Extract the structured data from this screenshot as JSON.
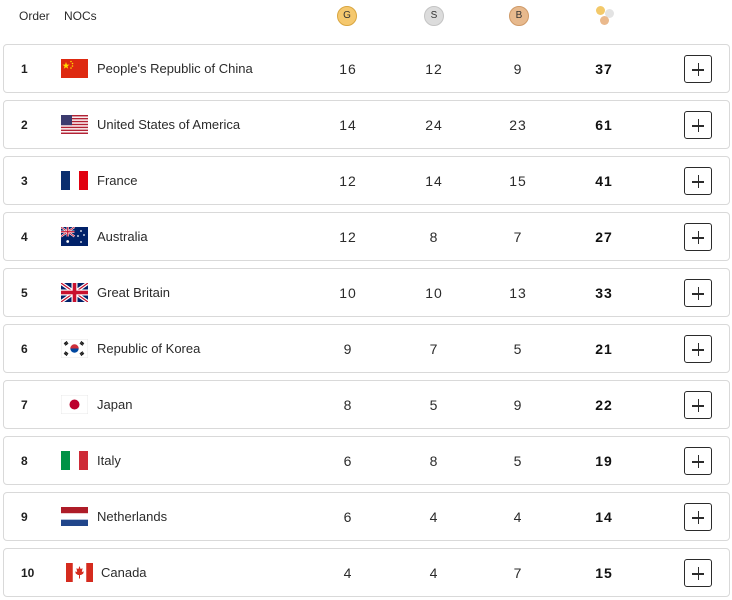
{
  "header": {
    "order_label": "Order",
    "nocs_label": "NOCs",
    "gold_label": "G",
    "silver_label": "S",
    "bronze_label": "B",
    "total_icon": "medals-total-icon"
  },
  "colors": {
    "gold": "#f5c86e",
    "silver": "#dcdcdc",
    "bronze": "#e7b98d"
  },
  "rows": [
    {
      "order": "1",
      "noc": "People's Republic of China",
      "flag": "china-flag-icon",
      "gold": "16",
      "silver": "12",
      "bronze": "9",
      "total": "37"
    },
    {
      "order": "2",
      "noc": "United States of America",
      "flag": "usa-flag-icon",
      "gold": "14",
      "silver": "24",
      "bronze": "23",
      "total": "61"
    },
    {
      "order": "3",
      "noc": "France",
      "flag": "france-flag-icon",
      "gold": "12",
      "silver": "14",
      "bronze": "15",
      "total": "41"
    },
    {
      "order": "4",
      "noc": "Australia",
      "flag": "australia-flag-icon",
      "gold": "12",
      "silver": "8",
      "bronze": "7",
      "total": "27"
    },
    {
      "order": "5",
      "noc": "Great Britain",
      "flag": "great-britain-flag-icon",
      "gold": "10",
      "silver": "10",
      "bronze": "13",
      "total": "33"
    },
    {
      "order": "6",
      "noc": "Republic of Korea",
      "flag": "korea-flag-icon",
      "gold": "9",
      "silver": "7",
      "bronze": "5",
      "total": "21"
    },
    {
      "order": "7",
      "noc": "Japan",
      "flag": "japan-flag-icon",
      "gold": "8",
      "silver": "5",
      "bronze": "9",
      "total": "22"
    },
    {
      "order": "8",
      "noc": "Italy",
      "flag": "italy-flag-icon",
      "gold": "6",
      "silver": "8",
      "bronze": "5",
      "total": "19"
    },
    {
      "order": "9",
      "noc": "Netherlands",
      "flag": "netherlands-flag-icon",
      "gold": "6",
      "silver": "4",
      "bronze": "4",
      "total": "14"
    },
    {
      "order": "10",
      "noc": "Canada",
      "flag": "canada-flag-icon",
      "gold": "4",
      "silver": "4",
      "bronze": "7",
      "total": "15"
    }
  ]
}
